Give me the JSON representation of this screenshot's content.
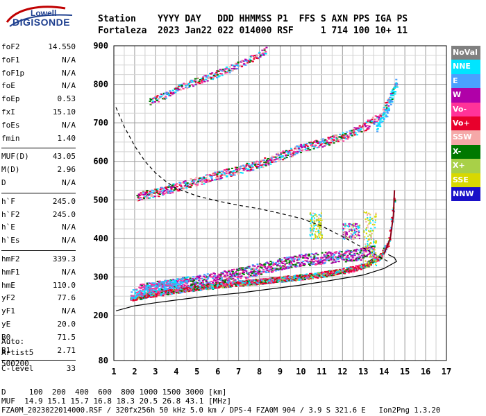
{
  "logo": {
    "top": "Lowell",
    "bottom": "DIGISONDE"
  },
  "header": {
    "line1": "Station    YYYY DAY   DDD HHMMSS P1  FFS S AXN PPS IGA PS",
    "line2": "Fortaleza  2023 Jan22 022 014000 RSF     1 714 100 10+ 11"
  },
  "params": {
    "g1": [
      {
        "name": "foF2",
        "value": "14.550"
      },
      {
        "name": "foF1",
        "value": "N/A"
      },
      {
        "name": "foF1p",
        "value": "N/A"
      },
      {
        "name": "foE",
        "value": "N/A"
      },
      {
        "name": "foEp",
        "value": "0.53"
      },
      {
        "name": "fxI",
        "value": "15.10"
      },
      {
        "name": "foEs",
        "value": "N/A"
      },
      {
        "name": "fmin",
        "value": "1.40"
      }
    ],
    "g2": [
      {
        "name": "MUF(D)",
        "value": "43.05"
      },
      {
        "name": "M(D)",
        "value": "2.96"
      },
      {
        "name": "D",
        "value": "N/A"
      }
    ],
    "g3": [
      {
        "name": "h`F",
        "value": "245.0"
      },
      {
        "name": "h`F2",
        "value": "245.0"
      },
      {
        "name": "h`E",
        "value": "N/A"
      },
      {
        "name": "h`Es",
        "value": "N/A"
      }
    ],
    "g4": [
      {
        "name": "hmF2",
        "value": "339.3"
      },
      {
        "name": "hmF1",
        "value": "N/A"
      },
      {
        "name": "hmE",
        "value": "110.0"
      },
      {
        "name": "yF2",
        "value": "77.6"
      },
      {
        "name": "yF1",
        "value": "N/A"
      },
      {
        "name": "yE",
        "value": "20.0"
      },
      {
        "name": "B0",
        "value": "71.5"
      },
      {
        "name": "B1",
        "value": "2.71"
      }
    ],
    "g5": [
      {
        "name": "C-level",
        "value": "33"
      }
    ]
  },
  "auto": {
    "line1": "Auto:",
    "line2": "Artist5",
    "line3": "500200"
  },
  "legend": [
    {
      "label": "NoVal",
      "color": "#808080"
    },
    {
      "label": "NNE",
      "color": "#00e5ff"
    },
    {
      "label": "E",
      "color": "#4aa0ff"
    },
    {
      "label": "W",
      "color": "#b000a8"
    },
    {
      "label": "Vo-",
      "color": "#ff3399"
    },
    {
      "label": "Vo+",
      "color": "#e8002c"
    },
    {
      "label": "SSW",
      "color": "#f5a8a8"
    },
    {
      "label": "X-",
      "color": "#007800"
    },
    {
      "label": "X+",
      "color": "#a8d048"
    },
    {
      "label": "SSE",
      "color": "#d8d800"
    },
    {
      "label": "NNW",
      "color": "#1a10c8"
    }
  ],
  "footer": {
    "line1": "D     100  200  400  600  800 1000 1500 3000 [km]",
    "line2": "MUF  14.9 15.1 15.7 16.8 18.3 20.5 26.8 43.1 [MHz]",
    "line3": "FZA0M_2023022014000.RSF / 320fx256h 50 kHz 5.0 km / DPS-4 FZA0M 904 / 3.9 S 321.6 E   Ion2Png 1.3.20"
  },
  "chart_data": {
    "type": "scatter",
    "xlim": [
      1,
      17
    ],
    "ylim": [
      80,
      900
    ],
    "x_ticks": [
      "1",
      "2",
      "3",
      "4",
      "5",
      "6",
      "7",
      "8",
      "9",
      "10",
      "11",
      "12",
      "13",
      "14",
      "15",
      "16",
      "17"
    ],
    "y_ticks": [
      "80",
      "200",
      "300",
      "400",
      "500",
      "600",
      "700",
      "800",
      "900"
    ],
    "grid": true,
    "ordinary_trace": {
      "x": [
        1.8,
        2.5,
        3.5,
        4.5,
        5.5,
        6.5,
        7.5,
        8.5,
        9.5,
        10.5,
        11.5,
        12.5,
        13.2,
        13.8,
        14.2,
        14.5
      ],
      "y": [
        245,
        253,
        262,
        270,
        276,
        282,
        287,
        292,
        298,
        304,
        312,
        322,
        335,
        355,
        390,
        520
      ]
    },
    "multihop_2F": {
      "x": [
        2.1,
        3,
        4,
        5,
        6,
        7,
        8,
        9,
        10,
        11,
        12,
        13,
        13.8,
        14.6
      ],
      "y": [
        510,
        520,
        535,
        550,
        565,
        580,
        595,
        615,
        635,
        650,
        665,
        690,
        720,
        800
      ]
    },
    "multihop_3F": {
      "x": [
        2.7,
        3.5,
        4.5,
        5.5,
        6.5,
        7.5,
        8.3
      ],
      "y": [
        755,
        775,
        800,
        820,
        840,
        865,
        890
      ]
    },
    "extraordinary_trace": {
      "x": [
        2.2,
        3,
        4,
        5,
        6,
        7,
        8,
        9,
        10,
        11,
        12,
        12.8,
        13.5
      ],
      "y": [
        268,
        275,
        283,
        290,
        300,
        310,
        322,
        335,
        345,
        350,
        355,
        360,
        370
      ]
    },
    "es_clusters": [
      {
        "x": [
          10.4,
          11.0
        ],
        "y": [
          400,
          470
        ],
        "series": "SSE"
      },
      {
        "x": [
          13.0,
          13.6
        ],
        "y": [
          330,
          470
        ],
        "series": "SSE"
      },
      {
        "x": [
          12.0,
          12.8
        ],
        "y": [
          400,
          440
        ],
        "series": "W"
      }
    ],
    "profile_solid": {
      "x": [
        1.1,
        2,
        3,
        4,
        5,
        6,
        7,
        8,
        9,
        10,
        11,
        12,
        13,
        14,
        14.6,
        14.5,
        14.2
      ],
      "y": [
        212,
        225,
        233,
        240,
        247,
        253,
        258,
        265,
        272,
        279,
        287,
        296,
        305,
        322,
        340,
        350,
        358
      ]
    },
    "profile_dashed": {
      "x": [
        1.1,
        1.5,
        2,
        2.5,
        3,
        3.5,
        4,
        5,
        6,
        7,
        8,
        9,
        10,
        11,
        12,
        13,
        14.2
      ],
      "y": [
        740,
        690,
        640,
        600,
        570,
        548,
        530,
        510,
        497,
        486,
        477,
        465,
        452,
        432,
        405,
        375,
        340
      ]
    }
  }
}
